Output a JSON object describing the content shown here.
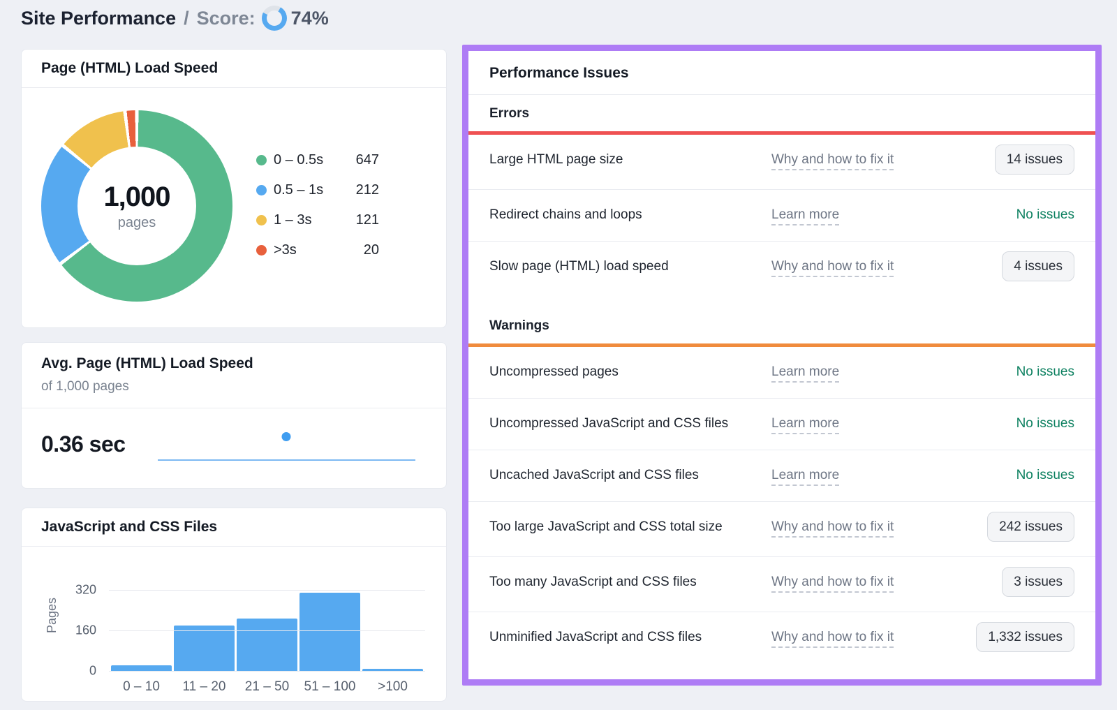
{
  "header": {
    "title": "Site Performance",
    "separator": "/",
    "score_label": "Score:",
    "score_value": "74%",
    "score_percent": 74
  },
  "colors": {
    "page_bg": "#eef0f5",
    "accent_blue": "#56a9f0",
    "ring_track": "#dfe3e9",
    "errors_accent": "#ef5152",
    "warnings_accent": "#f08b3d",
    "panel_border": "#ae7cf5",
    "no_issues_green": "#0e8161"
  },
  "chart_data": [
    {
      "id": "page-load-speed-donut",
      "type": "pie",
      "title": "Page (HTML) Load Speed",
      "labels": [
        "0 – 0.5s",
        "0.5 – 1s",
        "1 – 3s",
        ">3s"
      ],
      "values": [
        647,
        212,
        121,
        20
      ],
      "colors": [
        "#57b98c",
        "#56a9f0",
        "#f0c14d",
        "#e8603c"
      ],
      "center": {
        "value": "1,000",
        "label": "pages"
      },
      "legend_position": "right"
    },
    {
      "id": "avg-page-load-speed",
      "type": "line",
      "title": "Avg. Page (HTML) Load Speed",
      "subtitle": "of 1,000 pages",
      "value": "0.36 sec",
      "point": {
        "x_pct": 50
      },
      "line_color": "#7db9f2",
      "dot_color": "#3f9df0"
    },
    {
      "id": "js-css-files-histogram",
      "type": "bar",
      "title": "JavaScript and CSS Files",
      "categories": [
        "0 – 10",
        "11 – 20",
        "21 – 50",
        "51 – 100",
        ">100"
      ],
      "values": [
        22,
        178,
        208,
        310,
        8
      ],
      "ylabel": "Pages",
      "yticks": [
        0,
        160,
        320
      ],
      "ylim": [
        0,
        345
      ],
      "grid": true,
      "bar_color": "#56a9f0"
    }
  ],
  "issues_panel": {
    "title": "Performance Issues",
    "sections": [
      {
        "heading": "Errors",
        "accent_color": "#ef5152",
        "rows": [
          {
            "title": "Large HTML page size",
            "link": "Why and how to fix it",
            "status": {
              "type": "button",
              "label": "14 issues"
            }
          },
          {
            "title": "Redirect chains and loops",
            "link": "Learn more",
            "status": {
              "type": "text",
              "label": "No issues"
            }
          },
          {
            "title": "Slow page (HTML) load speed",
            "link": "Why and how to fix it",
            "status": {
              "type": "button",
              "label": "4 issues"
            }
          }
        ]
      },
      {
        "heading": "Warnings",
        "accent_color": "#f08b3d",
        "rows": [
          {
            "title": "Uncompressed pages",
            "link": "Learn more",
            "status": {
              "type": "text",
              "label": "No issues"
            }
          },
          {
            "title": "Uncompressed JavaScript and CSS files",
            "link": "Learn more",
            "status": {
              "type": "text",
              "label": "No issues"
            }
          },
          {
            "title": "Uncached JavaScript and CSS files",
            "link": "Learn more",
            "status": {
              "type": "text",
              "label": "No issues"
            }
          },
          {
            "title": "Too large JavaScript and CSS total size",
            "link": "Why and how to fix it",
            "status": {
              "type": "button",
              "label": "242 issues"
            }
          },
          {
            "title": "Too many JavaScript and CSS files",
            "link": "Why and how to fix it",
            "status": {
              "type": "button",
              "label": "3 issues"
            }
          },
          {
            "title": "Unminified JavaScript and CSS files",
            "link": "Why and how to fix it",
            "status": {
              "type": "button",
              "label": "1,332 issues"
            }
          }
        ]
      }
    ]
  }
}
